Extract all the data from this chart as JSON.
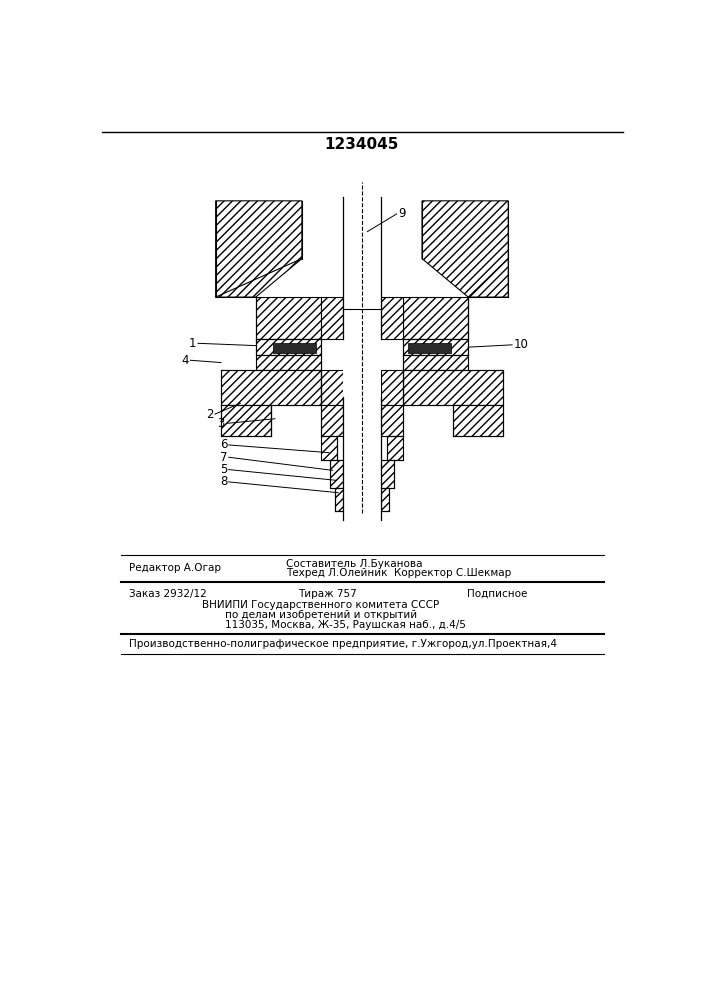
{
  "title": "1234045",
  "bg_color": "#ffffff",
  "fig_width": 7.07,
  "fig_height": 10.0,
  "dpi": 100,
  "footer_line1_left": "Редактор А.Огар",
  "footer_line1_center1": "Составитель Л.Буканова",
  "footer_line1_center2": "Техред Л.Олейник  Корректор С.Шекмар",
  "footer_line2_left": "Заказ 2932/12",
  "footer_line2_center": "Тираж 757",
  "footer_line2_right": "Подписное",
  "footer_line3": "ВНИИПИ Государственного комитета СССР",
  "footer_line4": "по делам изобретений и открытий",
  "footer_line5": "113035, Москва, Ж-35, Раушская наб., д.4/5",
  "footer_line6": "Производственно-полиграфическое предприятие, г.Ужгород,ул.Проектная,4"
}
